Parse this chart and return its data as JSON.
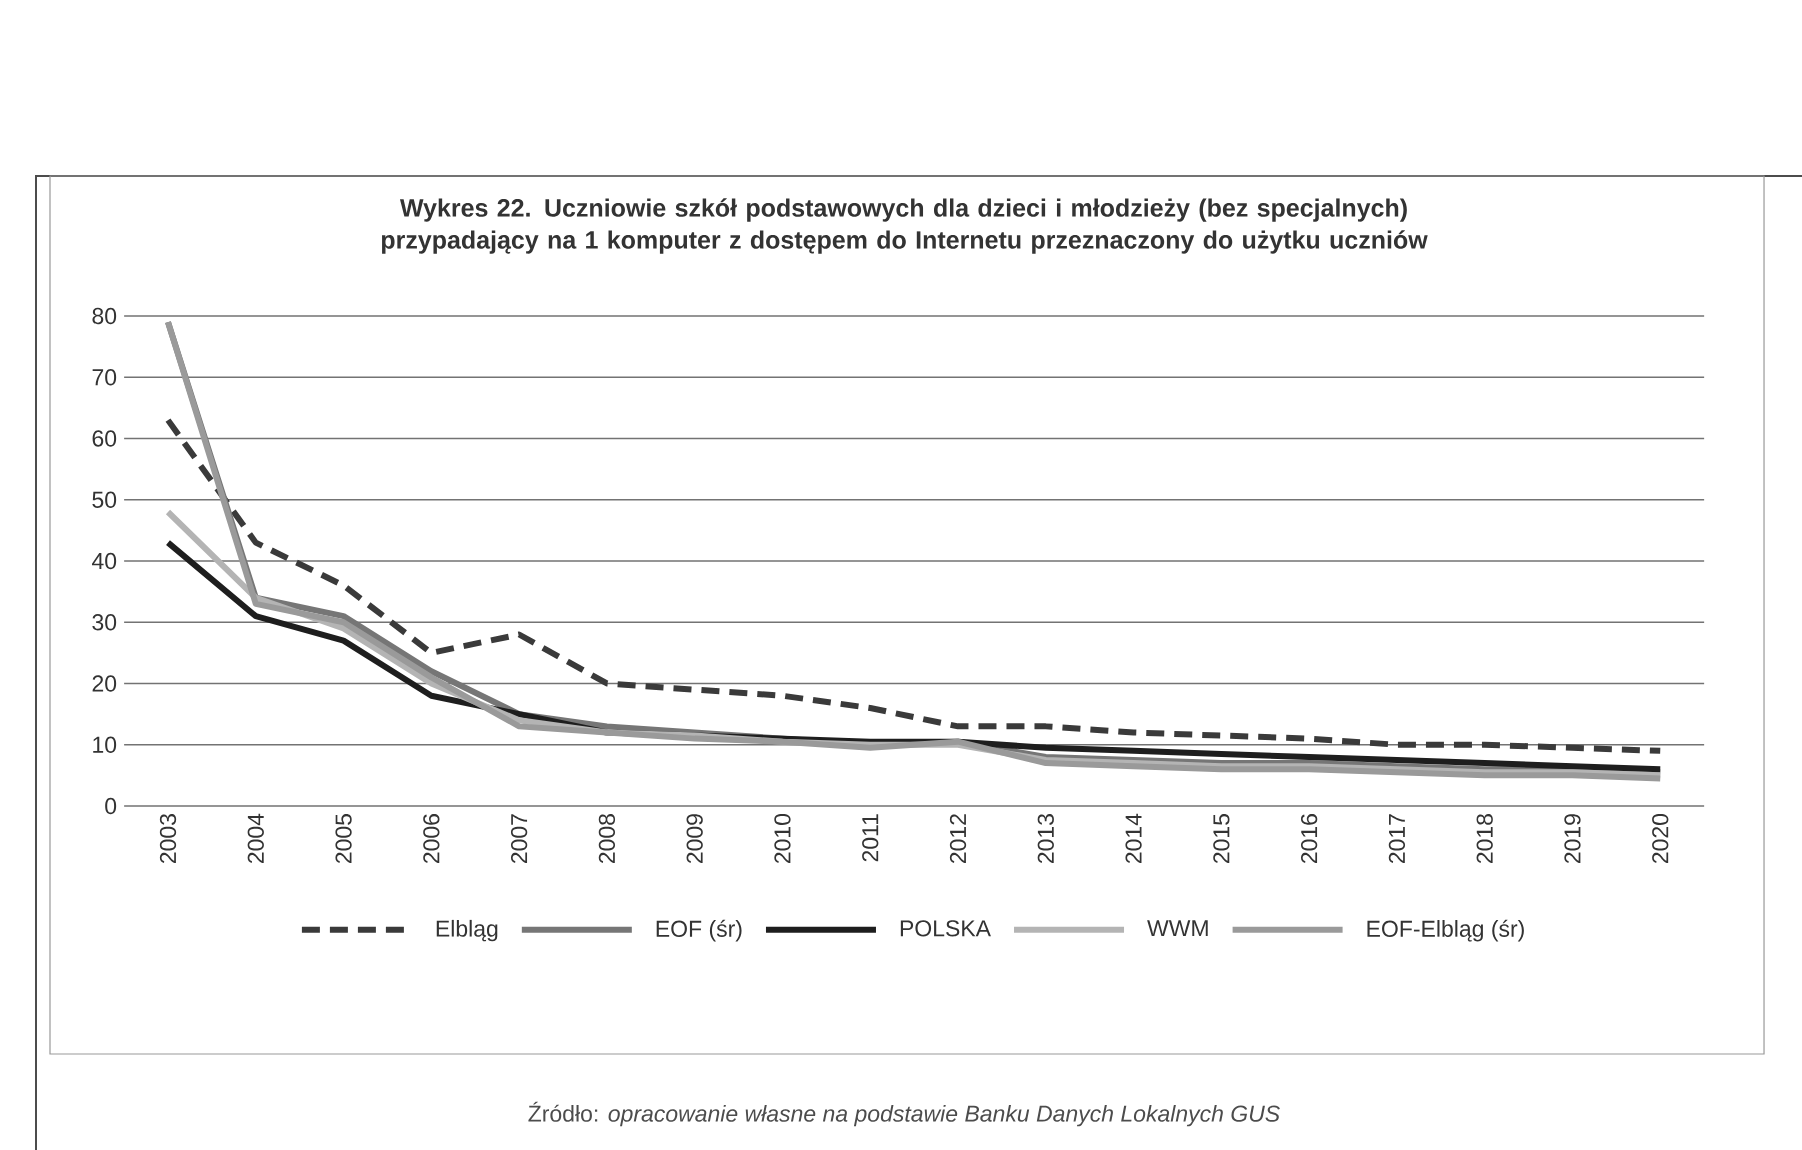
{
  "chart_data": {
    "type": "line",
    "title": "**Wykres 22.** Uczniowie szkół podstawowych dla dzieci i młodzieży (bez specjalnych) przypadający na 1 komputer z dostępem do Internetu przeznaczony do użytku uczniów",
    "annotations": [
      "Źródło: *opracowanie własne na podstawie Banku Danych Lokalnych GUS*"
    ],
    "categories": [
      "2003",
      "2004",
      "2005",
      "2006",
      "2007",
      "2008",
      "2009",
      "2010",
      "2011",
      "2012",
      "2013",
      "2014",
      "2015",
      "2016",
      "2017",
      "2018",
      "2019",
      "2020"
    ],
    "series": [
      {
        "name": "Elbląg",
        "color": "#3a3a3a",
        "line_style": "dashed",
        "values": [
          63,
          43,
          36,
          25,
          28,
          20,
          19,
          18,
          16,
          13,
          13,
          12,
          11.5,
          11,
          10,
          10,
          9.5,
          9
        ]
      },
      {
        "name": "EOF (śr)",
        "color": "#767676",
        "values": [
          79,
          34,
          31,
          22,
          15,
          13,
          12,
          11,
          10,
          10.5,
          8,
          7.5,
          7,
          7,
          6.5,
          6,
          6,
          5.5
        ]
      },
      {
        "name": "POLSKA",
        "color": "#1e1e1e",
        "values": [
          43,
          31,
          27,
          18,
          15,
          12,
          11.5,
          11,
          10.5,
          10.5,
          9.5,
          9,
          8.5,
          8,
          7.5,
          7,
          6.5,
          6
        ]
      },
      {
        "name": "WWM",
        "color": "#b4b4b4",
        "values": [
          48,
          34,
          29,
          20,
          14,
          12,
          11.5,
          10.5,
          10,
          10,
          7.5,
          7,
          6.5,
          6.5,
          6,
          5.5,
          5.5,
          5
        ]
      },
      {
        "name": "EOF-Elbląg (śr)",
        "color": "#9a9a9a",
        "values": [
          79,
          33,
          30,
          21,
          13,
          12,
          11,
          10.5,
          9.5,
          10.5,
          7,
          6.5,
          6,
          6,
          5.5,
          5,
          5,
          4.5
        ]
      }
    ],
    "ylim": [
      0,
      80
    ],
    "yticks": [
      0,
      10,
      20,
      30,
      40,
      50,
      60,
      70,
      80
    ],
    "grid": "y",
    "legend": "bottom",
    "marker": "none",
    "line_style": "solid"
  }
}
